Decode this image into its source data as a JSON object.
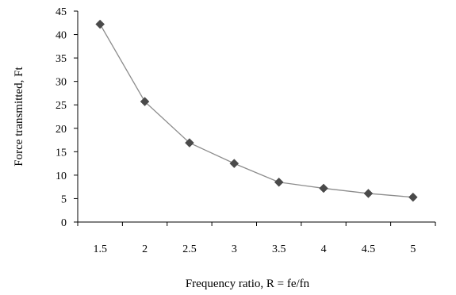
{
  "chart_data": {
    "type": "line",
    "title": "",
    "xlabel": "Frequency ratio, R = fe/fn",
    "ylabel": "Force transmitted, Ft",
    "categories": [
      "1.5",
      "2",
      "2.5",
      "3",
      "3.5",
      "4",
      "4.5",
      "5"
    ],
    "y_ticks": [
      "0",
      "5",
      "10",
      "15",
      "20",
      "25",
      "30",
      "35",
      "40",
      "45"
    ],
    "ylim": [
      0,
      45
    ],
    "grid": false,
    "legend": "none",
    "series": [
      {
        "values": [
          42.2,
          25.7,
          16.9,
          12.5,
          8.5,
          7.2,
          6.1,
          5.3
        ],
        "marker": "diamond",
        "line_color": "#8c8c8c",
        "marker_color": "#4a4a4a"
      }
    ]
  }
}
